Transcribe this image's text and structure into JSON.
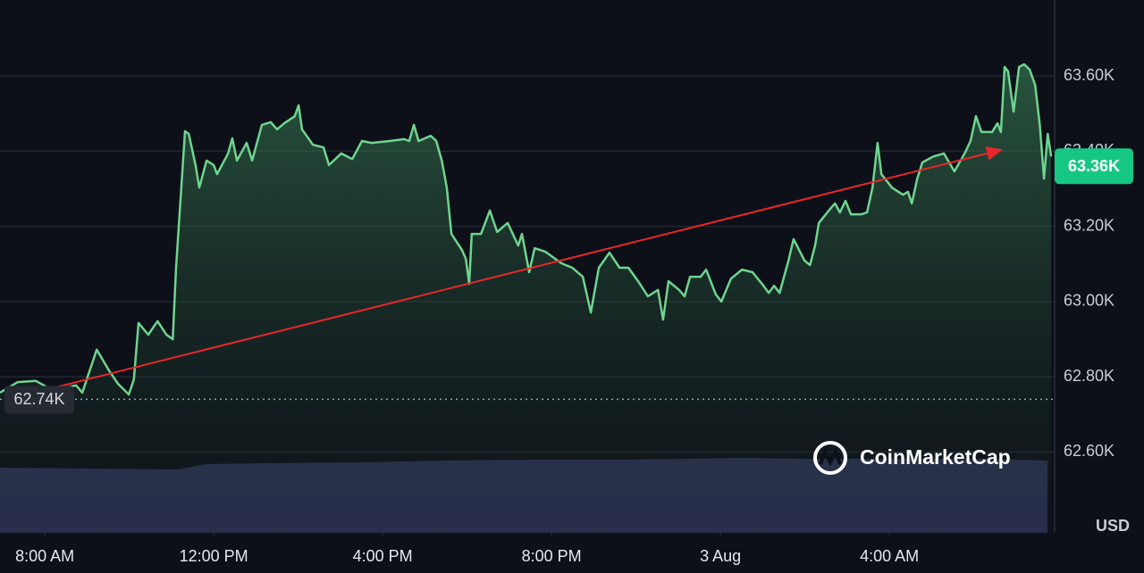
{
  "chart_data": {
    "type": "line",
    "color": "#6fd48f",
    "grid": true,
    "xlim": [
      6.94,
      31.87
    ],
    "xticks": [
      {
        "value": 8,
        "label": "8:00 AM"
      },
      {
        "value": 12,
        "label": "12:00 PM"
      },
      {
        "value": 16,
        "label": "4:00 PM"
      },
      {
        "value": 20,
        "label": "8:00 PM"
      },
      {
        "value": 24,
        "label": "3 Aug"
      },
      {
        "value": 28,
        "label": "4:00 AM"
      }
    ],
    "ylim": [
      62385,
      63802
    ],
    "yticks": [
      {
        "value": 62600,
        "label": "62.60K"
      },
      {
        "value": 62800,
        "label": "62.80K"
      },
      {
        "value": 63000,
        "label": "63.00K"
      },
      {
        "value": 63200,
        "label": "63.20K"
      },
      {
        "value": 63400,
        "label": "63.40K"
      },
      {
        "value": 63600,
        "label": "63.60K"
      }
    ],
    "currency": "USD",
    "watermark": "CoinMarketCap",
    "current_price": {
      "value": 63360,
      "label": "63.36K"
    },
    "reference_price": {
      "value": 62740,
      "label": "62.74K"
    },
    "x": [
      6.94,
      7.36,
      7.79,
      8.17,
      8.74,
      8.89,
      9.23,
      9.52,
      9.73,
      9.99,
      10.11,
      10.22,
      10.45,
      10.67,
      10.88,
      11.03,
      11.11,
      11.24,
      11.32,
      11.41,
      11.57,
      11.66,
      11.83,
      12.0,
      12.08,
      12.34,
      12.44,
      12.55,
      12.78,
      12.91,
      13.14,
      13.35,
      13.5,
      13.67,
      13.92,
      14.01,
      14.09,
      14.35,
      14.6,
      14.73,
      15.02,
      15.28,
      15.51,
      15.74,
      16.17,
      16.51,
      16.63,
      16.74,
      16.85,
      17.14,
      17.27,
      17.4,
      17.52,
      17.63,
      17.88,
      17.97,
      18.05,
      18.11,
      18.33,
      18.54,
      18.71,
      18.96,
      19.21,
      19.3,
      19.47,
      19.6,
      19.85,
      20.23,
      20.49,
      20.74,
      20.93,
      21.12,
      21.37,
      21.61,
      21.82,
      22.05,
      22.28,
      22.52,
      22.64,
      22.77,
      23.02,
      23.15,
      23.28,
      23.53,
      23.66,
      23.89,
      24.02,
      24.25,
      24.51,
      24.76,
      25.02,
      25.14,
      25.27,
      25.4,
      25.61,
      25.73,
      25.99,
      26.12,
      26.24,
      26.33,
      26.58,
      26.71,
      26.83,
      26.96,
      27.09,
      27.34,
      27.47,
      27.6,
      27.72,
      27.81,
      28.06,
      28.32,
      28.44,
      28.53,
      28.66,
      28.78,
      29.04,
      29.29,
      29.54,
      29.8,
      29.92,
      30.05,
      30.18,
      30.43,
      30.56,
      30.64,
      30.73,
      30.81,
      30.94,
      31.07,
      31.19,
      31.32,
      31.45,
      31.56,
      31.66,
      31.75,
      31.83
    ],
    "values": [
      62758,
      62786,
      62789,
      62765,
      62777,
      62758,
      62872,
      62817,
      62782,
      62753,
      62793,
      62943,
      62912,
      62948,
      62912,
      62900,
      63090,
      63315,
      63453,
      63446,
      63363,
      63303,
      63375,
      63363,
      63339,
      63394,
      63434,
      63375,
      63422,
      63375,
      63470,
      63477,
      63458,
      63474,
      63493,
      63522,
      63458,
      63417,
      63410,
      63363,
      63394,
      63379,
      63427,
      63422,
      63427,
      63432,
      63427,
      63470,
      63427,
      63441,
      63427,
      63375,
      63303,
      63180,
      63137,
      63114,
      63047,
      63180,
      63180,
      63242,
      63185,
      63209,
      63149,
      63180,
      63078,
      63142,
      63133,
      63102,
      63090,
      63066,
      62971,
      63090,
      63130,
      63090,
      63090,
      63054,
      63014,
      63031,
      62952,
      63054,
      63031,
      63014,
      63066,
      63066,
      63085,
      63019,
      63000,
      63061,
      63085,
      63078,
      63042,
      63023,
      63042,
      63023,
      63109,
      63166,
      63109,
      63097,
      63149,
      63209,
      63244,
      63261,
      63237,
      63268,
      63232,
      63232,
      63237,
      63303,
      63422,
      63339,
      63303,
      63284,
      63292,
      63261,
      63327,
      63370,
      63386,
      63394,
      63346,
      63398,
      63427,
      63493,
      63451,
      63451,
      63474,
      63451,
      63624,
      63612,
      63505,
      63624,
      63631,
      63617,
      63576,
      63470,
      63327,
      63446,
      63386
    ]
  }
}
